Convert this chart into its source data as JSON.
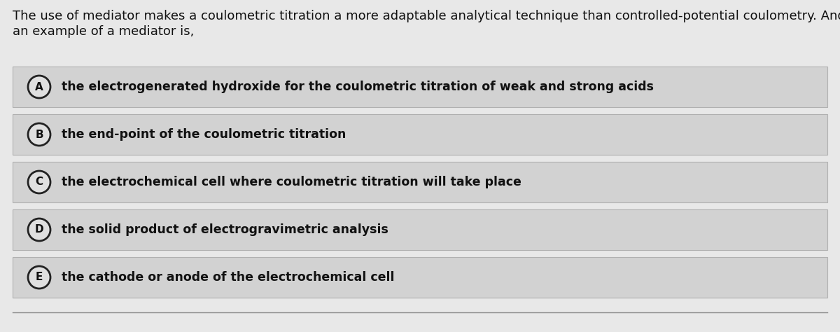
{
  "background_color": "#e8e8e8",
  "question_text_line1": "The use of mediator makes a coulometric titration a more adaptable analytical technique than controlled-potential coulometry. And",
  "question_text_line2": "an example of a mediator is,",
  "options": [
    {
      "label": "A",
      "text": "the electrogenerated hydroxide for the coulometric titration of weak and strong acids"
    },
    {
      "label": "B",
      "text": "the end-point of the coulometric titration"
    },
    {
      "label": "C",
      "text": "the electrochemical cell where coulometric titration will take place"
    },
    {
      "label": "D",
      "text": "the solid product of electrogravimetric analysis"
    },
    {
      "label": "E",
      "text": "the cathode or anode of the electrochemical cell"
    }
  ],
  "option_bg_color": "#d2d2d2",
  "option_border_color": "#b0b0b0",
  "text_color": "#111111",
  "circle_edge_color": "#222222",
  "circle_face_color": "#e0e0e0",
  "font_size_question": 13.0,
  "font_size_option": 12.5,
  "font_size_label": 11.0
}
